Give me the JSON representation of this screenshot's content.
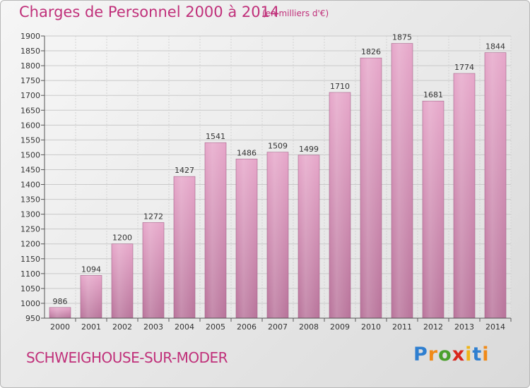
{
  "header": {
    "title": "Charges de Personnel 2000 à 2014",
    "subtitle": "(en milliers d'€)"
  },
  "footer": {
    "commune": "SCHWEIGHOUSE-SUR-MODER",
    "logo_text": "Proxiti",
    "logo_letters": [
      "P",
      "r",
      "o",
      "x",
      "i",
      "t",
      "i"
    ],
    "logo_colors": [
      "#2f7fd0",
      "#f08a18",
      "#4aa02c",
      "#d9261c",
      "#f0b418",
      "#2f7fd0",
      "#f08a18"
    ]
  },
  "chart_data": {
    "type": "bar",
    "title": "Charges de Personnel 2000 à 2014",
    "subtitle": "(en milliers d'€)",
    "xlabel": "",
    "ylabel": "",
    "categories": [
      "2000",
      "2001",
      "2002",
      "2003",
      "2004",
      "2005",
      "2006",
      "2007",
      "2008",
      "2009",
      "2010",
      "2011",
      "2012",
      "2013",
      "2014"
    ],
    "values": [
      986,
      1094,
      1200,
      1272,
      1427,
      1541,
      1486,
      1509,
      1499,
      1710,
      1826,
      1875,
      1681,
      1774,
      1844
    ],
    "ylim": [
      950,
      1900
    ],
    "yticks": [
      950,
      1000,
      1050,
      1100,
      1150,
      1200,
      1250,
      1300,
      1350,
      1400,
      1450,
      1500,
      1550,
      1600,
      1650,
      1700,
      1750,
      1800,
      1850,
      1900
    ],
    "grid": true,
    "bar_color": "#d98fb8",
    "bar_color_dark": "#b0668f",
    "title_color": "#c0307a"
  }
}
